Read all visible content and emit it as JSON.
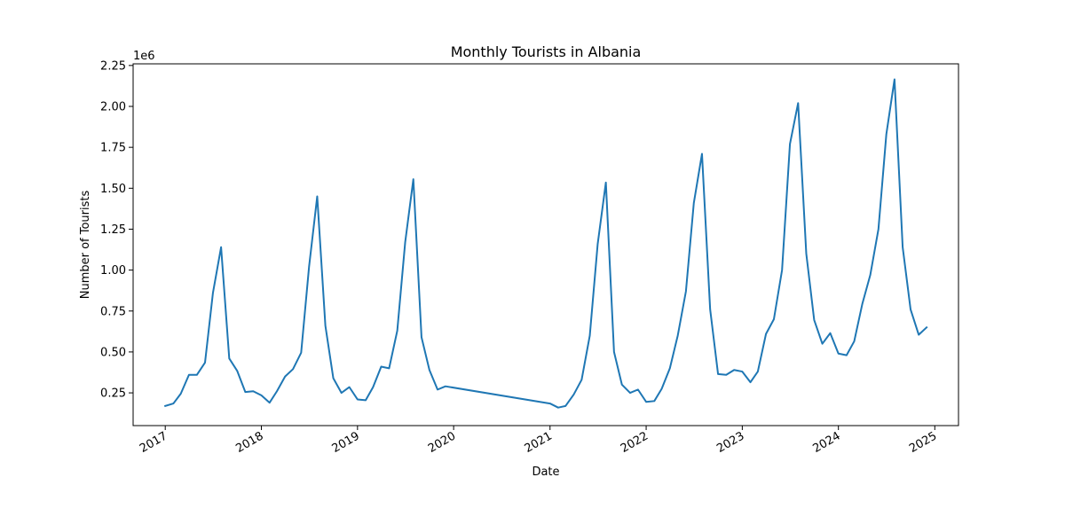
{
  "chart_data": {
    "type": "line",
    "title": "Monthly Tourists in Albania",
    "xlabel": "Date",
    "ylabel": "Number of Tourists",
    "y_offset_label": "1e6",
    "y_scale": 1000000,
    "ylim": [
      0.05,
      2.26
    ],
    "xlim": [
      "2016-09-01",
      "2025-04-01"
    ],
    "grid": false,
    "legend": "none",
    "y_ticks": [
      0.25,
      0.5,
      0.75,
      1.0,
      1.25,
      1.5,
      1.75,
      2.0,
      2.25
    ],
    "y_tick_labels": [
      "0.25",
      "0.50",
      "0.75",
      "1.00",
      "1.25",
      "1.50",
      "1.75",
      "2.00",
      "2.25"
    ],
    "x_ticks": [
      "2017-01-01",
      "2018-01-01",
      "2019-01-01",
      "2020-01-01",
      "2021-01-01",
      "2022-01-01",
      "2023-01-01",
      "2024-01-01",
      "2025-01-01"
    ],
    "x_tick_labels": [
      "2017",
      "2018",
      "2019",
      "2020",
      "2021",
      "2022",
      "2023",
      "2024",
      "2025"
    ],
    "series": [
      {
        "color": "#1f77b4",
        "points": [
          [
            "2017-01-01",
            0.17
          ],
          [
            "2017-02-01",
            0.185
          ],
          [
            "2017-03-01",
            0.245
          ],
          [
            "2017-04-01",
            0.36
          ],
          [
            "2017-05-01",
            0.36
          ],
          [
            "2017-06-01",
            0.435
          ],
          [
            "2017-07-01",
            0.86
          ],
          [
            "2017-08-01",
            1.14
          ],
          [
            "2017-09-01",
            0.46
          ],
          [
            "2017-10-01",
            0.385
          ],
          [
            "2017-11-01",
            0.255
          ],
          [
            "2017-12-01",
            0.26
          ],
          [
            "2018-01-01",
            0.235
          ],
          [
            "2018-02-01",
            0.19
          ],
          [
            "2018-03-01",
            0.26
          ],
          [
            "2018-04-01",
            0.35
          ],
          [
            "2018-05-01",
            0.395
          ],
          [
            "2018-06-01",
            0.495
          ],
          [
            "2018-07-01",
            1.02
          ],
          [
            "2018-08-01",
            1.45
          ],
          [
            "2018-09-01",
            0.66
          ],
          [
            "2018-10-01",
            0.34
          ],
          [
            "2018-11-01",
            0.25
          ],
          [
            "2018-12-01",
            0.285
          ],
          [
            "2019-01-01",
            0.21
          ],
          [
            "2019-02-01",
            0.205
          ],
          [
            "2019-03-01",
            0.285
          ],
          [
            "2019-04-01",
            0.41
          ],
          [
            "2019-05-01",
            0.4
          ],
          [
            "2019-06-01",
            0.63
          ],
          [
            "2019-07-01",
            1.17
          ],
          [
            "2019-08-01",
            1.555
          ],
          [
            "2019-09-01",
            0.59
          ],
          [
            "2019-10-01",
            0.39
          ],
          [
            "2019-11-01",
            0.27
          ],
          [
            "2019-12-01",
            0.29
          ],
          [
            "2021-01-01",
            0.185
          ],
          [
            "2021-02-01",
            0.16
          ],
          [
            "2021-03-01",
            0.17
          ],
          [
            "2021-04-01",
            0.24
          ],
          [
            "2021-05-01",
            0.33
          ],
          [
            "2021-06-01",
            0.6
          ],
          [
            "2021-07-01",
            1.16
          ],
          [
            "2021-08-01",
            1.535
          ],
          [
            "2021-09-01",
            0.5
          ],
          [
            "2021-10-01",
            0.3
          ],
          [
            "2021-11-01",
            0.25
          ],
          [
            "2021-12-01",
            0.27
          ],
          [
            "2022-01-01",
            0.195
          ],
          [
            "2022-02-01",
            0.2
          ],
          [
            "2022-03-01",
            0.275
          ],
          [
            "2022-04-01",
            0.4
          ],
          [
            "2022-05-01",
            0.6
          ],
          [
            "2022-06-01",
            0.87
          ],
          [
            "2022-07-01",
            1.41
          ],
          [
            "2022-08-01",
            1.71
          ],
          [
            "2022-09-01",
            0.76
          ],
          [
            "2022-10-01",
            0.365
          ],
          [
            "2022-11-01",
            0.36
          ],
          [
            "2022-12-01",
            0.39
          ],
          [
            "2023-01-01",
            0.38
          ],
          [
            "2023-02-01",
            0.315
          ],
          [
            "2023-03-01",
            0.38
          ],
          [
            "2023-04-01",
            0.61
          ],
          [
            "2023-05-01",
            0.7
          ],
          [
            "2023-06-01",
            1.0
          ],
          [
            "2023-07-01",
            1.77
          ],
          [
            "2023-08-01",
            2.02
          ],
          [
            "2023-09-01",
            1.1
          ],
          [
            "2023-10-01",
            0.695
          ],
          [
            "2023-11-01",
            0.55
          ],
          [
            "2023-12-01",
            0.615
          ],
          [
            "2024-01-01",
            0.49
          ],
          [
            "2024-02-01",
            0.48
          ],
          [
            "2024-03-01",
            0.565
          ],
          [
            "2024-04-01",
            0.795
          ],
          [
            "2024-05-01",
            0.97
          ],
          [
            "2024-06-01",
            1.25
          ],
          [
            "2024-07-01",
            1.83
          ],
          [
            "2024-08-01",
            2.165
          ],
          [
            "2024-09-01",
            1.14
          ],
          [
            "2024-10-01",
            0.76
          ],
          [
            "2024-11-01",
            0.605
          ],
          [
            "2024-12-01",
            0.65
          ]
        ]
      }
    ]
  }
}
